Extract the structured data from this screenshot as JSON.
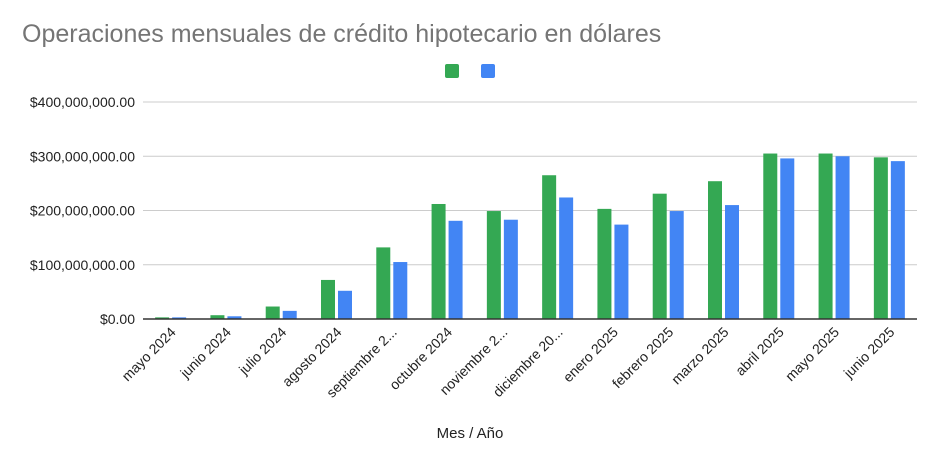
{
  "chart_data": {
    "type": "bar",
    "title": "Operaciones mensuales de crédito hipotecario en dólares",
    "xlabel": "Mes / Año",
    "ylabel": "",
    "ylim": [
      0,
      400000000
    ],
    "yticks": [
      "$0.00",
      "$100,000,000.00",
      "$200,000,000.00",
      "$300,000,000.00",
      "$400,000,000.00"
    ],
    "ytick_values": [
      0,
      100000000,
      200000000,
      300000000,
      400000000
    ],
    "grid": true,
    "legend": "top-center",
    "categories": [
      "mayo 2024",
      "junio 2024",
      "julio 2024",
      "agosto 2024",
      "septiembre 2...",
      "octubre 2024",
      "noviembre 2...",
      "diciembre 20...",
      "enero 2025",
      "febrero 2025",
      "marzo 2025",
      "abril 2025",
      "mayo 2025",
      "junio 2025"
    ],
    "series": [
      {
        "color": "#34a853",
        "values": [
          3000000,
          7000000,
          23000000,
          72000000,
          132000000,
          212000000,
          199000000,
          265000000,
          203000000,
          231000000,
          254000000,
          305000000,
          305000000,
          298000000
        ]
      },
      {
        "color": "#4285f4",
        "values": [
          3000000,
          5000000,
          15000000,
          52000000,
          105000000,
          181000000,
          183000000,
          224000000,
          174000000,
          199000000,
          210000000,
          296000000,
          300000000,
          291000000
        ]
      }
    ]
  }
}
